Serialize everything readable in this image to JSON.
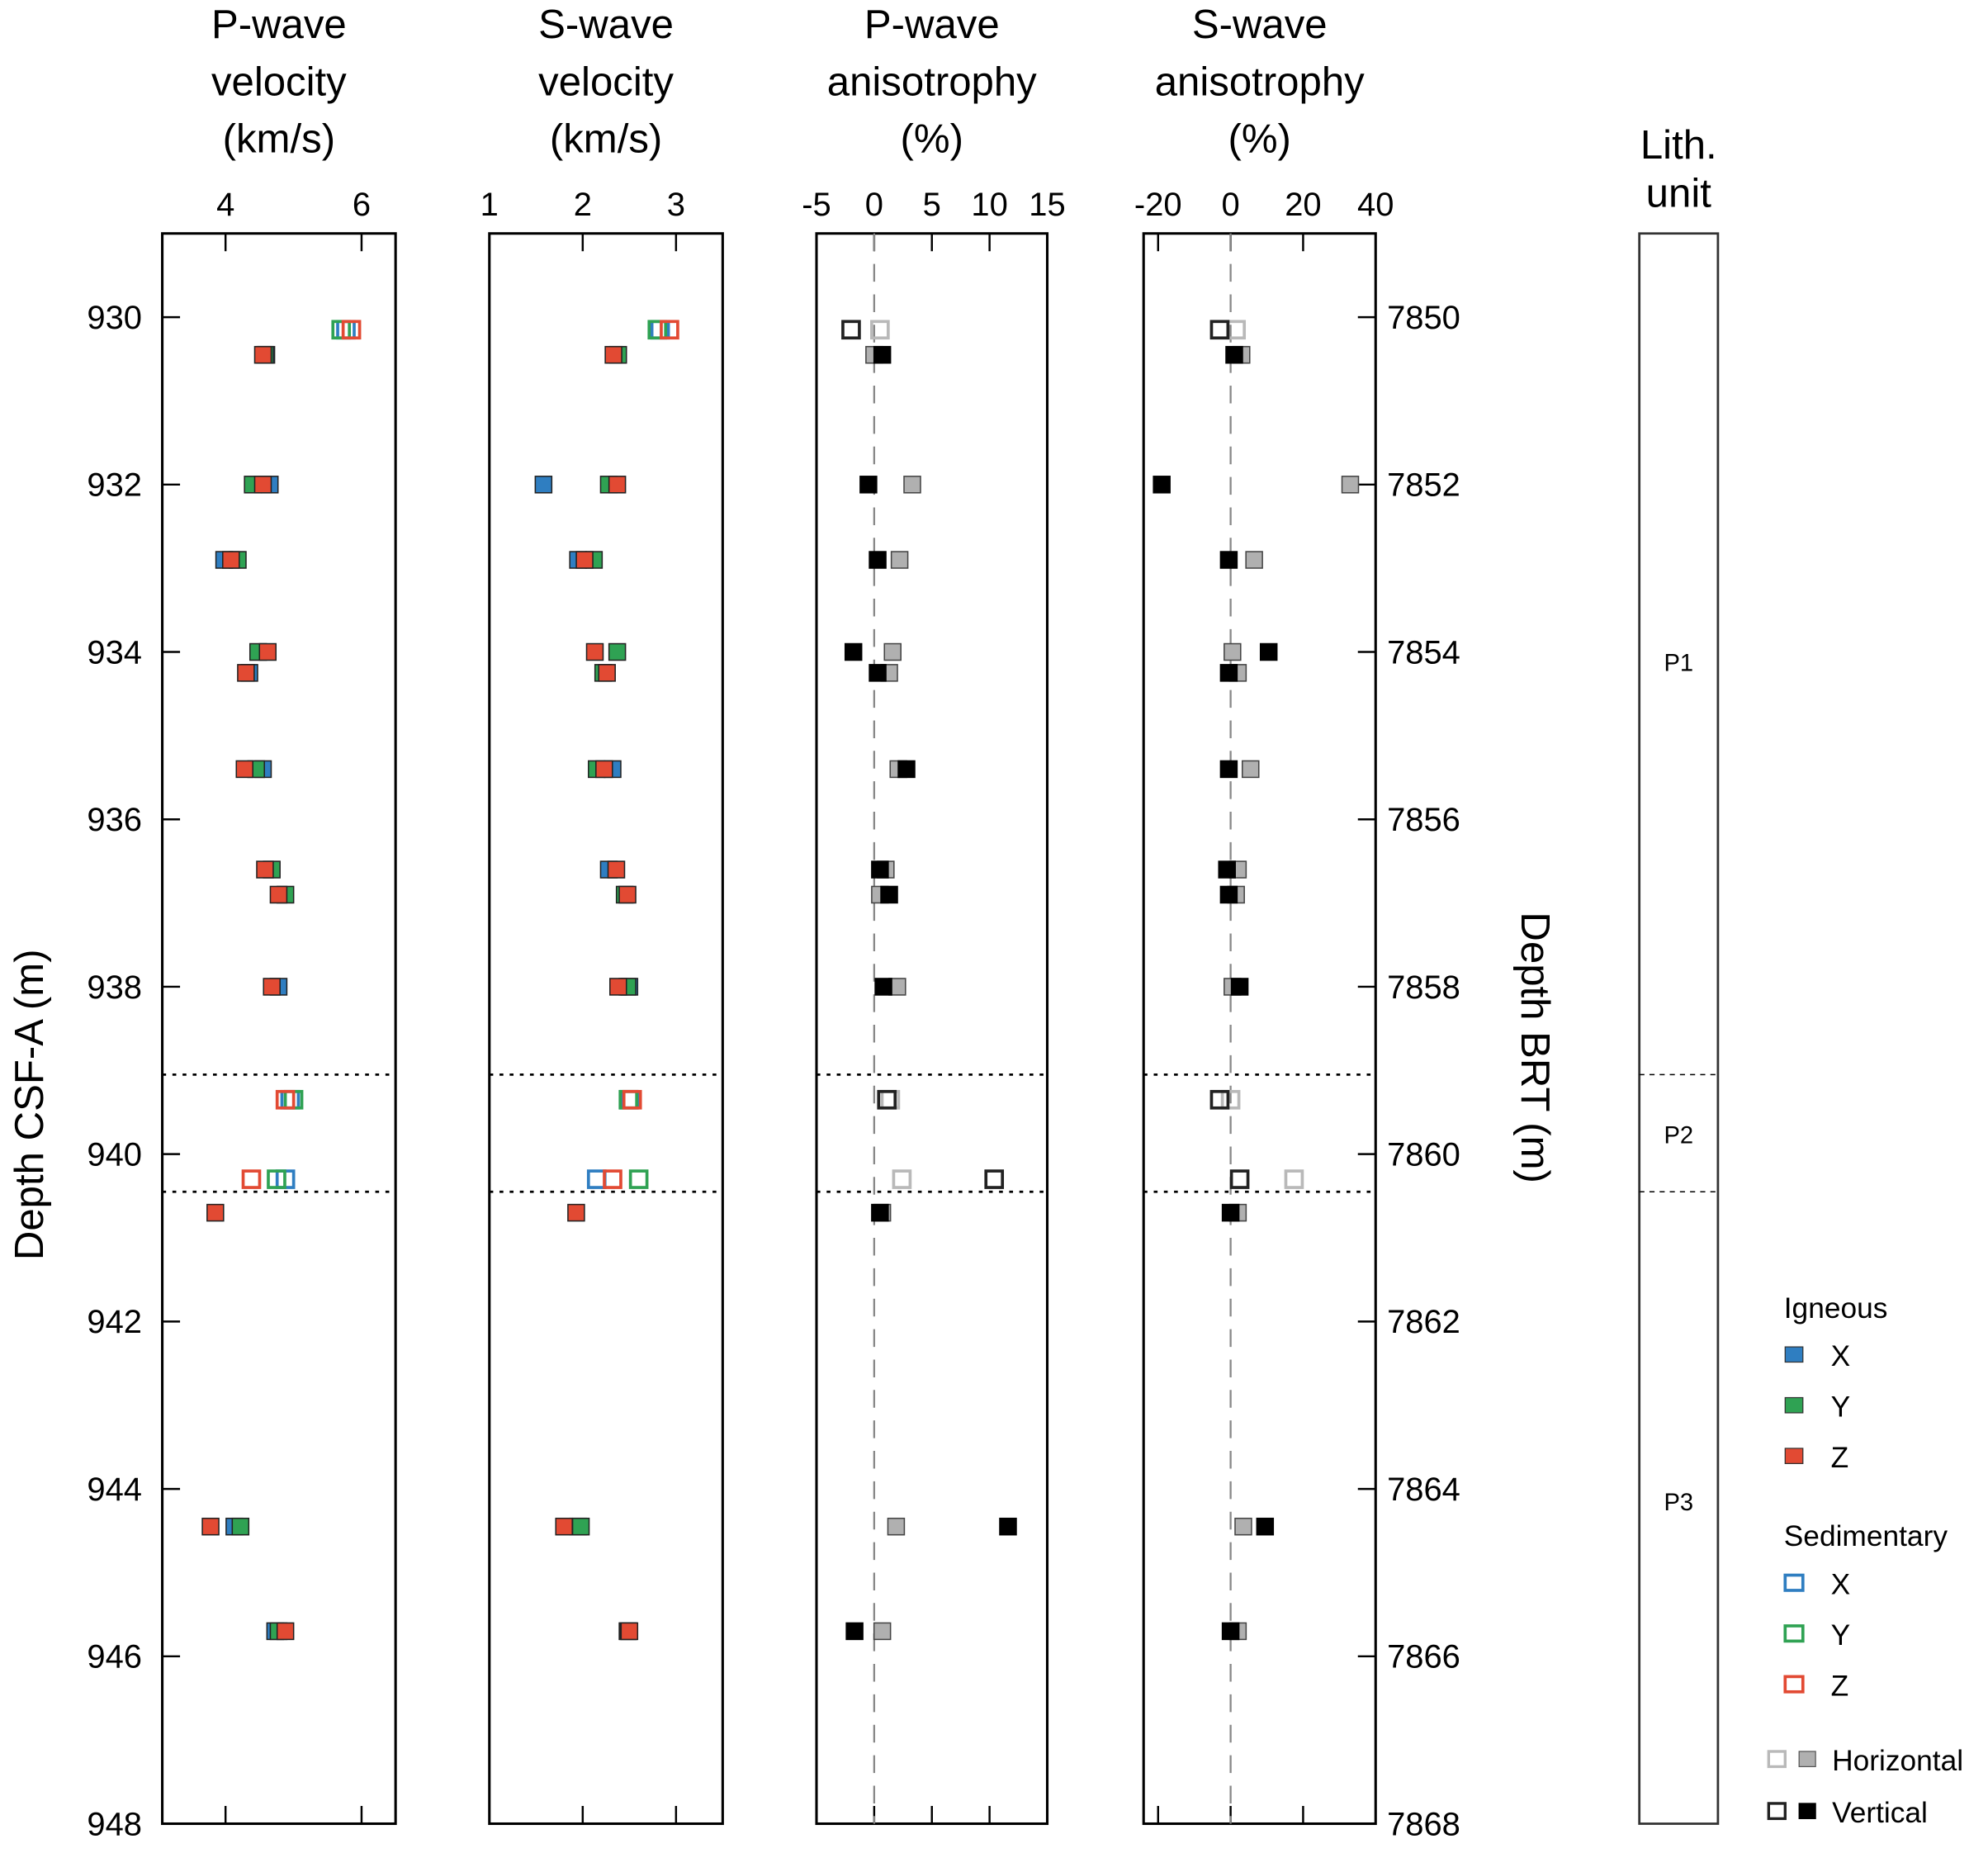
{
  "chart_data": {
    "type": "scatter",
    "colors": {
      "X": "#2f7ec1",
      "Y": "#2fa253",
      "Z": "#e24a33",
      "horizontal_open": "#b9b9b9",
      "horizontal_filled": "#b0b0b0",
      "vertical": "#000000",
      "sed_vertical_open": "#222222"
    },
    "y_axis": {
      "label": "Depth CSF-A (m)",
      "range": [
        929,
        948
      ],
      "ticks": [
        930,
        932,
        934,
        936,
        938,
        940,
        942,
        944,
        946,
        948
      ]
    },
    "y_axis_right": {
      "label": "Depth BRT (m)",
      "range": [
        7849,
        7868
      ],
      "ticks": [
        7850,
        7852,
        7854,
        7856,
        7858,
        7860,
        7862,
        7864,
        7866,
        7868
      ]
    },
    "unit_boundaries": [
      939.05,
      940.45
    ],
    "panels": [
      {
        "id": "p_vel",
        "title": [
          "P-wave",
          "velocity",
          "(km/s)"
        ],
        "xlim": [
          3.07,
          6.5
        ],
        "ticks": [
          4,
          6
        ],
        "tick_labels": [
          "4",
          "6"
        ],
        "zero_line": false,
        "series": [
          {
            "name": "Igneous X",
            "lith": "igneous",
            "comp": "X",
            "points": [
              [
                4.6,
                930.45
              ],
              [
                4.65,
                932
              ],
              [
                3.98,
                932.9
              ],
              [
                4.35,
                934.25
              ],
              [
                4.55,
                935.4
              ],
              [
                4.78,
                938
              ],
              [
                4.13,
                944.45
              ],
              [
                4.73,
                945.7
              ]
            ]
          },
          {
            "name": "Igneous Y",
            "lith": "igneous",
            "comp": "Y",
            "points": [
              [
                4.58,
                930.45
              ],
              [
                4.4,
                932
              ],
              [
                4.18,
                932.9
              ],
              [
                4.48,
                934
              ],
              [
                4.45,
                935.4
              ],
              [
                4.68,
                936.6
              ],
              [
                4.88,
                936.9
              ],
              [
                4.22,
                944.45
              ],
              [
                4.78,
                945.7
              ]
            ]
          },
          {
            "name": "Igneous Z",
            "lith": "igneous",
            "comp": "Z",
            "points": [
              [
                4.55,
                930.45
              ],
              [
                4.55,
                932
              ],
              [
                4.08,
                932.9
              ],
              [
                4.62,
                934
              ],
              [
                4.3,
                934.25
              ],
              [
                4.28,
                935.4
              ],
              [
                4.58,
                936.6
              ],
              [
                4.78,
                936.9
              ],
              [
                4.68,
                938
              ],
              [
                3.85,
                940.7
              ],
              [
                3.78,
                944.45
              ],
              [
                4.88,
                945.7
              ]
            ]
          },
          {
            "name": "Sedimentary X",
            "lith": "sedimentary",
            "comp": "X",
            "points": [
              [
                5.77,
                930.15
              ],
              [
                4.95,
                939.35
              ],
              [
                4.88,
                940.3
              ]
            ]
          },
          {
            "name": "Sedimentary Y",
            "lith": "sedimentary",
            "comp": "Y",
            "points": [
              [
                5.7,
                930.15
              ],
              [
                5.0,
                939.35
              ],
              [
                4.75,
                940.3
              ]
            ]
          },
          {
            "name": "Sedimentary Z",
            "lith": "sedimentary",
            "comp": "Z",
            "points": [
              [
                5.85,
                930.15
              ],
              [
                4.88,
                939.35
              ],
              [
                4.38,
                940.3
              ]
            ]
          }
        ]
      },
      {
        "id": "s_vel",
        "title": [
          "S-wave",
          "velocity",
          "(km/s)"
        ],
        "xlim": [
          1.0,
          3.5
        ],
        "ticks": [
          1,
          2,
          3
        ],
        "tick_labels": [
          "1",
          "2",
          "3"
        ],
        "zero_line": false,
        "series": [
          {
            "name": "Igneous X",
            "lith": "igneous",
            "comp": "X",
            "points": [
              [
                1.58,
                932
              ],
              [
                1.95,
                932.9
              ],
              [
                2.32,
                935.4
              ],
              [
                2.28,
                936.6
              ],
              [
                2.5,
                938
              ],
              [
                1.95,
                944.45
              ],
              [
                2.48,
                945.7
              ]
            ]
          },
          {
            "name": "Igneous Y",
            "lith": "igneous",
            "comp": "Y",
            "points": [
              [
                2.38,
                930.45
              ],
              [
                2.28,
                932
              ],
              [
                2.12,
                932.9
              ],
              [
                2.37,
                934
              ],
              [
                2.22,
                934.25
              ],
              [
                2.15,
                935.4
              ],
              [
                2.45,
                936.9
              ],
              [
                2.48,
                938
              ],
              [
                1.98,
                944.45
              ],
              [
                2.49,
                945.7
              ]
            ]
          },
          {
            "name": "Igneous Z",
            "lith": "igneous",
            "comp": "Z",
            "points": [
              [
                2.33,
                930.45
              ],
              [
                2.37,
                932
              ],
              [
                2.02,
                932.9
              ],
              [
                2.13,
                934
              ],
              [
                2.26,
                934.25
              ],
              [
                2.23,
                935.4
              ],
              [
                2.36,
                936.6
              ],
              [
                2.48,
                936.9
              ],
              [
                2.38,
                938
              ],
              [
                1.93,
                940.7
              ],
              [
                1.8,
                944.45
              ],
              [
                2.5,
                945.7
              ]
            ]
          },
          {
            "name": "Sedimentary X",
            "lith": "sedimentary",
            "comp": "X",
            "points": [
              [
                2.83,
                930.15
              ],
              [
                2.5,
                939.35
              ],
              [
                2.15,
                940.3
              ]
            ]
          },
          {
            "name": "Sedimentary Y",
            "lith": "sedimentary",
            "comp": "Y",
            "points": [
              [
                2.8,
                930.15
              ],
              [
                2.49,
                939.35
              ],
              [
                2.6,
                940.3
              ]
            ]
          },
          {
            "name": "Sedimentary Z",
            "lith": "sedimentary",
            "comp": "Z",
            "points": [
              [
                2.93,
                930.15
              ],
              [
                2.53,
                939.35
              ],
              [
                2.32,
                940.3
              ]
            ]
          }
        ]
      },
      {
        "id": "p_aniso",
        "title": [
          "P-wave",
          "anisotrophy",
          "(%)"
        ],
        "xlim": [
          -5,
          15
        ],
        "ticks": [
          -5,
          0,
          5,
          10,
          15
        ],
        "tick_labels": [
          "-5",
          "0",
          "5",
          "10",
          "15"
        ],
        "zero_line": true,
        "series": [
          {
            "name": "Igneous Horizontal",
            "lith": "igneous",
            "comp": "H",
            "points": [
              [
                0.0,
                930.45
              ],
              [
                3.3,
                932
              ],
              [
                2.2,
                932.9
              ],
              [
                1.6,
                934
              ],
              [
                1.3,
                934.25
              ],
              [
                2.1,
                935.4
              ],
              [
                1.0,
                936.6
              ],
              [
                0.5,
                936.9
              ],
              [
                2.0,
                938
              ],
              [
                0.7,
                940.7
              ],
              [
                1.9,
                944.45
              ],
              [
                0.7,
                945.7
              ]
            ]
          },
          {
            "name": "Igneous Vertical",
            "lith": "igneous",
            "comp": "V",
            "points": [
              [
                0.7,
                930.45
              ],
              [
                -0.5,
                932
              ],
              [
                0.3,
                932.9
              ],
              [
                -1.8,
                934
              ],
              [
                0.3,
                934.25
              ],
              [
                2.8,
                935.4
              ],
              [
                0.5,
                936.6
              ],
              [
                1.3,
                936.9
              ],
              [
                0.8,
                938
              ],
              [
                0.5,
                940.7
              ],
              [
                11.6,
                944.45
              ],
              [
                -1.7,
                945.7
              ]
            ]
          },
          {
            "name": "Sedimentary Horizontal",
            "lith": "sedimentary",
            "comp": "H",
            "points": [
              [
                0.5,
                930.15
              ],
              [
                1.4,
                939.35
              ],
              [
                2.4,
                940.3
              ]
            ]
          },
          {
            "name": "Sedimentary Vertical",
            "lith": "sedimentary",
            "comp": "V",
            "points": [
              [
                -2.0,
                930.15
              ],
              [
                1.1,
                939.35
              ],
              [
                10.4,
                940.3
              ]
            ]
          }
        ]
      },
      {
        "id": "s_aniso",
        "title": [
          "S-wave",
          "anisotrophy",
          "(%)"
        ],
        "xlim": [
          -24,
          40
        ],
        "ticks": [
          -20,
          0,
          20,
          40
        ],
        "tick_labels": [
          "-20",
          "0",
          "20",
          "40"
        ],
        "zero_line": true,
        "series": [
          {
            "name": "Igneous Horizontal",
            "lith": "igneous",
            "comp": "H",
            "points": [
              [
                3.0,
                930.45
              ],
              [
                33.0,
                932
              ],
              [
                6.5,
                932.9
              ],
              [
                0.5,
                934
              ],
              [
                2.0,
                934.25
              ],
              [
                5.5,
                935.4
              ],
              [
                2.0,
                936.6
              ],
              [
                1.5,
                936.9
              ],
              [
                0.5,
                938
              ],
              [
                2.0,
                940.7
              ],
              [
                3.5,
                944.45
              ],
              [
                2.0,
                945.7
              ]
            ]
          },
          {
            "name": "Igneous Vertical",
            "lith": "igneous",
            "comp": "V",
            "points": [
              [
                1.0,
                930.45
              ],
              [
                -19.0,
                932
              ],
              [
                -0.5,
                932.9
              ],
              [
                10.5,
                934
              ],
              [
                -0.5,
                934.25
              ],
              [
                -0.5,
                935.4
              ],
              [
                -1.0,
                936.6
              ],
              [
                -0.5,
                936.9
              ],
              [
                2.5,
                938
              ],
              [
                0.0,
                940.7
              ],
              [
                9.5,
                944.45
              ],
              [
                0.0,
                945.7
              ]
            ]
          },
          {
            "name": "Sedimentary Horizontal",
            "lith": "sedimentary",
            "comp": "H",
            "points": [
              [
                1.5,
                930.15
              ],
              [
                0.0,
                939.35
              ],
              [
                17.5,
                940.3
              ]
            ]
          },
          {
            "name": "Sedimentary Vertical",
            "lith": "sedimentary",
            "comp": "V",
            "points": [
              [
                -3.0,
                930.15
              ],
              [
                -3.0,
                939.35
              ],
              [
                2.5,
                940.3
              ]
            ]
          }
        ]
      }
    ],
    "lith_column": {
      "title": [
        "Lith.",
        "unit"
      ],
      "units": [
        {
          "label": "P1",
          "top": 929,
          "bottom": 939.05
        },
        {
          "label": "P2",
          "top": 939.05,
          "bottom": 940.45
        },
        {
          "label": "P3",
          "top": 940.45,
          "bottom": 948
        }
      ]
    },
    "legend": {
      "placement": "bottom-right",
      "groups": [
        {
          "title": "Igneous",
          "items": [
            {
              "label": "X",
              "comp": "X",
              "style": "filled"
            },
            {
              "label": "Y",
              "comp": "Y",
              "style": "filled"
            },
            {
              "label": "Z",
              "comp": "Z",
              "style": "filled"
            }
          ]
        },
        {
          "title": "Sedimentary",
          "items": [
            {
              "label": "X",
              "comp": "X",
              "style": "open"
            },
            {
              "label": "Y",
              "comp": "Y",
              "style": "open"
            },
            {
              "label": "Z",
              "comp": "Z",
              "style": "open"
            }
          ]
        }
      ],
      "orientation": [
        {
          "label": "Horizontal",
          "comp": "H"
        },
        {
          "label": "Vertical",
          "comp": "V"
        }
      ]
    }
  }
}
